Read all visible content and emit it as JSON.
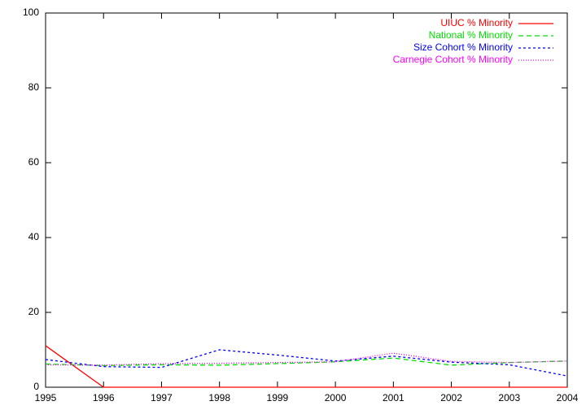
{
  "chart_data": {
    "type": "line",
    "x": [
      1995,
      1996,
      1997,
      1998,
      1999,
      2000,
      2001,
      2002,
      2003,
      2004
    ],
    "xlim": [
      1995,
      2004
    ],
    "xticks": [
      1995,
      1996,
      1997,
      1998,
      1999,
      2000,
      2001,
      2002,
      2003,
      2004
    ],
    "ylim": [
      0,
      100
    ],
    "yticks": [
      0,
      20,
      40,
      60,
      80,
      100
    ],
    "grid": false,
    "legend": "top-right",
    "series": [
      {
        "name": "UIUC % Minority",
        "color": "#ff0000",
        "values": [
          11.1,
          0,
          0,
          0,
          0,
          0,
          0,
          0,
          0,
          0
        ]
      },
      {
        "name": "National % Minority",
        "color": "#00e000",
        "values": [
          6.2,
          5.8,
          6.0,
          5.9,
          6.3,
          6.8,
          7.8,
          5.9,
          6.6,
          7.0
        ]
      },
      {
        "name": "Size Cohort % Minority",
        "color": "#0000ff",
        "values": [
          7.4,
          5.5,
          5.3,
          10.0,
          8.6,
          7.0,
          8.3,
          6.7,
          6.0,
          3.0
        ]
      },
      {
        "name": "Carnegie Cohort % Minority",
        "color": "#ff00ff",
        "values": [
          6.0,
          5.9,
          6.3,
          6.4,
          6.6,
          6.8,
          9.1,
          6.9,
          6.6,
          7.0
        ]
      }
    ]
  }
}
